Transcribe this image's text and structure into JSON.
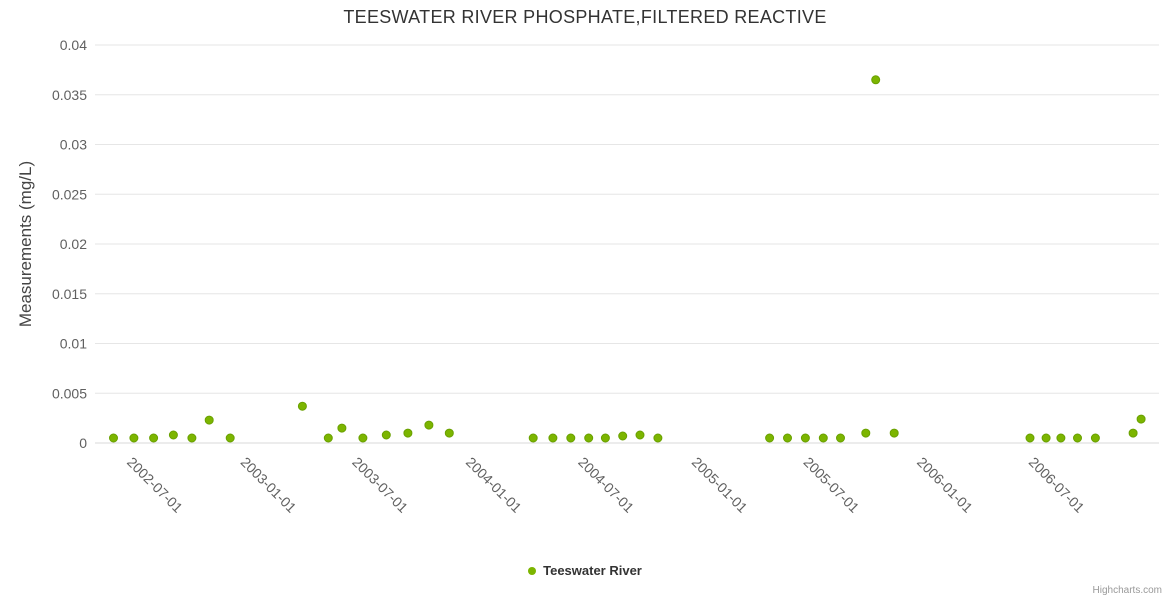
{
  "chart_data": {
    "type": "scatter",
    "title": "TEESWATER RIVER PHOSPHATE,FILTERED REACTIVE",
    "xlabel": "",
    "ylabel": "Measurements (mg/L)",
    "ylim": [
      0,
      0.04
    ],
    "y_tick_interval": 0.005,
    "y_tick_labels": [
      "0",
      "0.005",
      "0.01",
      "0.015",
      "0.02",
      "0.025",
      "0.03",
      "0.035",
      "0.04"
    ],
    "xlim": [
      "2002-04-01",
      "2006-12-20"
    ],
    "x_ticks": [
      "2002-07-01",
      "2003-01-01",
      "2003-07-01",
      "2004-01-01",
      "2004-07-01",
      "2005-01-01",
      "2005-07-01",
      "2006-01-01",
      "2006-07-01"
    ],
    "grid": true,
    "legend_position": "bottom-center",
    "series": [
      {
        "name": "Teeswater River",
        "color": "#7cb500",
        "stroke": "#69a000",
        "points": [
          [
            "2002-05-01",
            0.0005
          ],
          [
            "2002-06-03",
            0.0005
          ],
          [
            "2002-07-05",
            0.0005
          ],
          [
            "2002-08-06",
            0.0008
          ],
          [
            "2002-09-05",
            0.0005
          ],
          [
            "2002-10-03",
            0.0023
          ],
          [
            "2002-11-06",
            0.0005
          ],
          [
            "2003-03-03",
            0.0037
          ],
          [
            "2003-04-14",
            0.0005
          ],
          [
            "2003-05-06",
            0.0015
          ],
          [
            "2003-06-09",
            0.0005
          ],
          [
            "2003-07-17",
            0.0008
          ],
          [
            "2003-08-21",
            0.001
          ],
          [
            "2003-09-24",
            0.0018
          ],
          [
            "2003-10-27",
            0.001
          ],
          [
            "2004-03-11",
            0.0005
          ],
          [
            "2004-04-12",
            0.0005
          ],
          [
            "2004-05-11",
            0.0005
          ],
          [
            "2004-06-09",
            0.0005
          ],
          [
            "2004-07-06",
            0.0005
          ],
          [
            "2004-08-03",
            0.0007
          ],
          [
            "2004-08-31",
            0.0008
          ],
          [
            "2004-09-29",
            0.0005
          ],
          [
            "2005-03-29",
            0.0005
          ],
          [
            "2005-04-27",
            0.0005
          ],
          [
            "2005-05-26",
            0.0005
          ],
          [
            "2005-06-24",
            0.0005
          ],
          [
            "2005-07-22",
            0.0005
          ],
          [
            "2005-09-01",
            0.001
          ],
          [
            "2005-09-17",
            0.0365
          ],
          [
            "2005-10-17",
            0.001
          ],
          [
            "2006-05-25",
            0.0005
          ],
          [
            "2006-06-20",
            0.0005
          ],
          [
            "2006-07-14",
            0.0005
          ],
          [
            "2006-08-10",
            0.0005
          ],
          [
            "2006-09-08",
            0.0005
          ],
          [
            "2006-11-08",
            0.001
          ],
          [
            "2006-11-21",
            0.0024
          ]
        ]
      }
    ]
  },
  "colors": {
    "grid": "#e6e6e6",
    "axis_line": "#d8d8d8",
    "axis_label": "#606060",
    "point": "#7cb500"
  },
  "credits": "Highcharts.com"
}
